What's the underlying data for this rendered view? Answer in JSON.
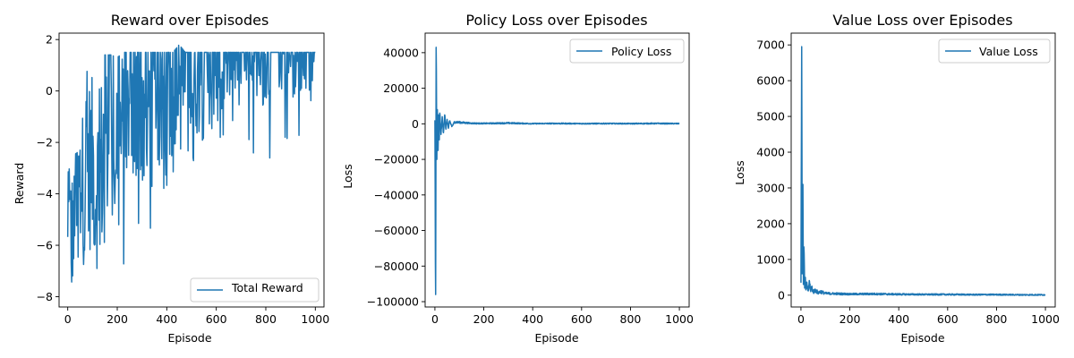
{
  "chart_data": [
    {
      "type": "line",
      "title": "Reward over Episodes",
      "xlabel": "Episode",
      "ylabel": "Reward",
      "xlim": [
        -35,
        1035
      ],
      "ylim": [
        -8.4,
        2.25
      ],
      "xticks": [
        0,
        200,
        400,
        600,
        800,
        1000
      ],
      "yticks": [
        2,
        0,
        -2,
        -4,
        -6,
        -8
      ],
      "color": "#1f77b4",
      "legend": {
        "entries": [
          "Total Reward"
        ],
        "position": "lower-right"
      },
      "series": [
        {
          "name": "Total Reward",
          "x": [
            0,
            25,
            50,
            75,
            100,
            125,
            150,
            175,
            200,
            225,
            250,
            275,
            300,
            325,
            350,
            375,
            400,
            425,
            450,
            475,
            500,
            525,
            550,
            575,
            600,
            625,
            650,
            675,
            700,
            725,
            750,
            775,
            800,
            825,
            850,
            875,
            900,
            925,
            950,
            975,
            1000
          ],
          "y": [
            -5.5,
            -6.2,
            -4.3,
            -3.8,
            -3.9,
            -4.8,
            -3.0,
            -2.6,
            -2.8,
            -3.2,
            -2.0,
            -2.2,
            -1.7,
            -1.4,
            -1.6,
            -1.1,
            -0.9,
            -0.6,
            -0.7,
            -0.2,
            -0.3,
            0.0,
            0.1,
            0.2,
            0.3,
            0.5,
            0.6,
            0.7,
            0.8,
            0.8,
            0.9,
            1.0,
            1.0,
            1.1,
            1.1,
            1.2,
            1.2,
            1.3,
            1.3,
            1.4,
            1.4
          ],
          "y_min": [
            -7.5,
            -8.0,
            -7.5,
            -6.9,
            -7.1,
            -7.8,
            -7.2,
            -6.8,
            -6.6,
            -6.9,
            -6.5,
            -6.6,
            -7.1,
            -5.5,
            -5.6,
            -4.6,
            -4.0,
            -4.3,
            -4.2,
            -3.9,
            -4.5,
            -4.0,
            -5.2,
            -3.6,
            -3.9,
            -2.5,
            -2.3,
            -2.0,
            -2.5,
            -2.0,
            -2.5,
            -2.0,
            -2.0,
            -3.3,
            -1.8,
            -2.0,
            -2.2,
            -2.0,
            -2.7,
            -2.7,
            -1.0
          ],
          "y_max": [
            -3.2,
            -2.5,
            -2.3,
            0.8,
            0.5,
            -0.1,
            1.4,
            1.4,
            1.3,
            1.5,
            1.5,
            1.5,
            1.5,
            1.5,
            1.5,
            1.5,
            1.5,
            1.5,
            1.8,
            1.5,
            1.5,
            1.5,
            1.5,
            1.5,
            1.5,
            1.5,
            1.5,
            1.5,
            1.5,
            1.5,
            1.5,
            1.5,
            1.5,
            1.5,
            1.5,
            1.5,
            1.5,
            1.5,
            1.5,
            1.5,
            1.5
          ]
        }
      ]
    },
    {
      "type": "line",
      "title": "Policy Loss over Episodes",
      "xlabel": "Episode",
      "ylabel": "Loss",
      "xlim": [
        -40,
        1040
      ],
      "ylim": [
        -103000,
        51000
      ],
      "xticks": [
        0,
        200,
        400,
        600,
        800,
        1000
      ],
      "yticks": [
        40000,
        20000,
        0,
        -20000,
        -40000,
        -60000,
        -80000,
        -100000
      ],
      "ytick_labels": [
        "40000",
        "20000",
        "0",
        "−20000",
        "−40000",
        "−60000",
        "−80000",
        "−100000"
      ],
      "color": "#1f77b4",
      "legend": {
        "entries": [
          "Policy Loss"
        ],
        "position": "upper-right"
      },
      "series": [
        {
          "name": "Policy Loss",
          "x": [
            0,
            3,
            5,
            8,
            10,
            13,
            15,
            18,
            20,
            25,
            30,
            35,
            40,
            45,
            50,
            55,
            60,
            70,
            80,
            100,
            150,
            200,
            300,
            400,
            500,
            600,
            700,
            800,
            900,
            1000
          ],
          "y": [
            2000,
            -96000,
            43000,
            -20000,
            8000,
            -15000,
            5000,
            -9000,
            6000,
            -6000,
            4000,
            -5000,
            5000,
            -3000,
            2500,
            -2500,
            1500,
            -1500,
            1000,
            800,
            300,
            200,
            400,
            100,
            200,
            100,
            150,
            100,
            200,
            100
          ]
        }
      ]
    },
    {
      "type": "line",
      "title": "Value Loss over Episodes",
      "xlabel": "Episode",
      "ylabel": "Loss",
      "xlim": [
        -40,
        1040
      ],
      "ylim": [
        -330,
        7330
      ],
      "xticks": [
        0,
        200,
        400,
        600,
        800,
        1000
      ],
      "yticks": [
        7000,
        6000,
        5000,
        4000,
        3000,
        2000,
        1000,
        0
      ],
      "color": "#1f77b4",
      "legend": {
        "entries": [
          "Value Loss"
        ],
        "position": "upper-right"
      },
      "series": [
        {
          "name": "Value Loss",
          "x": [
            0,
            3,
            5,
            8,
            10,
            12,
            15,
            18,
            20,
            25,
            30,
            35,
            40,
            45,
            50,
            60,
            70,
            80,
            100,
            150,
            200,
            300,
            400,
            500,
            600,
            700,
            800,
            900,
            1000
          ],
          "y": [
            350,
            6950,
            600,
            3100,
            300,
            1350,
            200,
            500,
            150,
            300,
            120,
            380,
            100,
            250,
            80,
            150,
            60,
            100,
            50,
            40,
            30,
            35,
            25,
            20,
            20,
            15,
            15,
            10,
            10
          ]
        }
      ]
    }
  ]
}
